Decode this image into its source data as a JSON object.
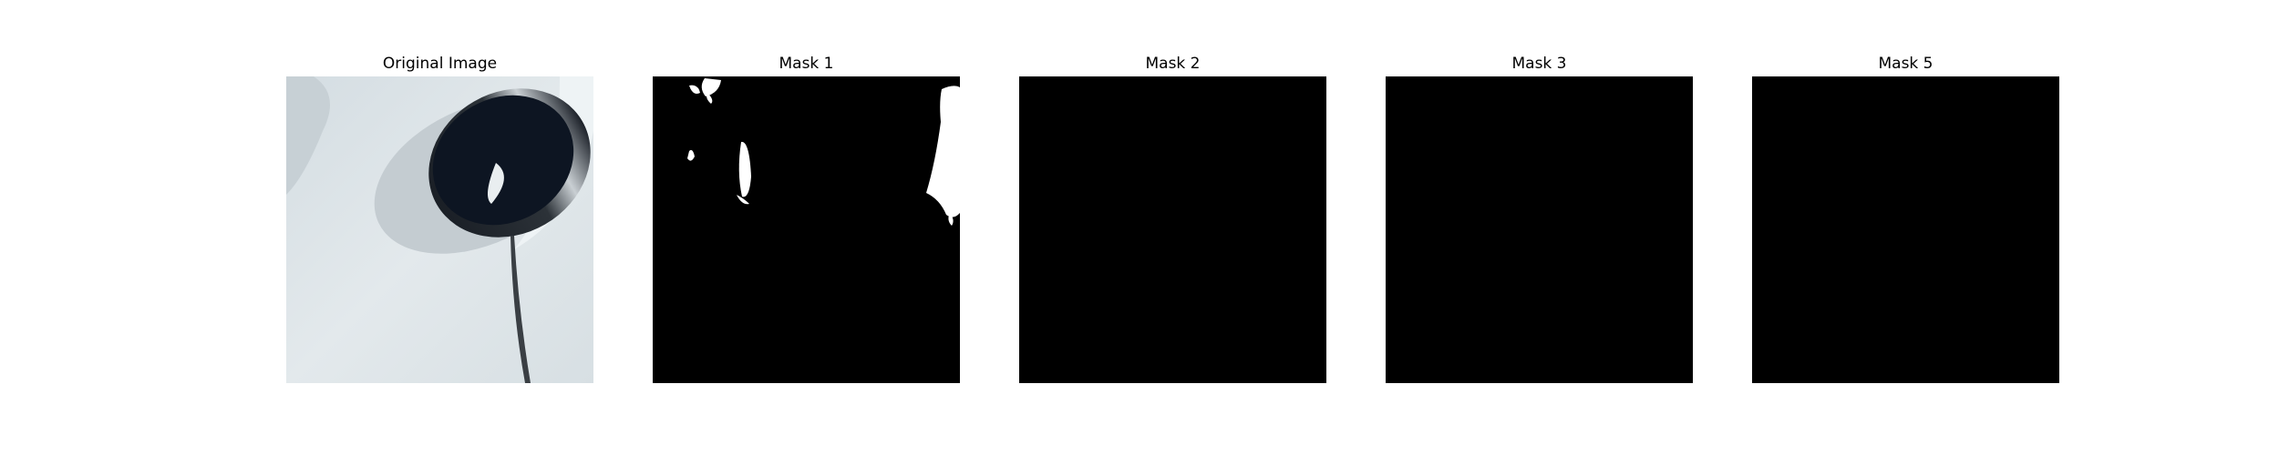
{
  "figure": {
    "panels": [
      {
        "title": "Original Image",
        "kind": "photo"
      },
      {
        "title": "Mask 1",
        "kind": "mask"
      },
      {
        "title": "Mask 2",
        "kind": "mask"
      },
      {
        "title": "Mask 3",
        "kind": "mask"
      },
      {
        "title": "Mask 5",
        "kind": "mask"
      }
    ]
  },
  "colors": {
    "mask_background": "#000000",
    "mask_foreground": "#ffffff",
    "photo_surface": "#dfe6ea",
    "photo_shadow": "#c9d0d4",
    "photo_cap": "#0d1522"
  }
}
